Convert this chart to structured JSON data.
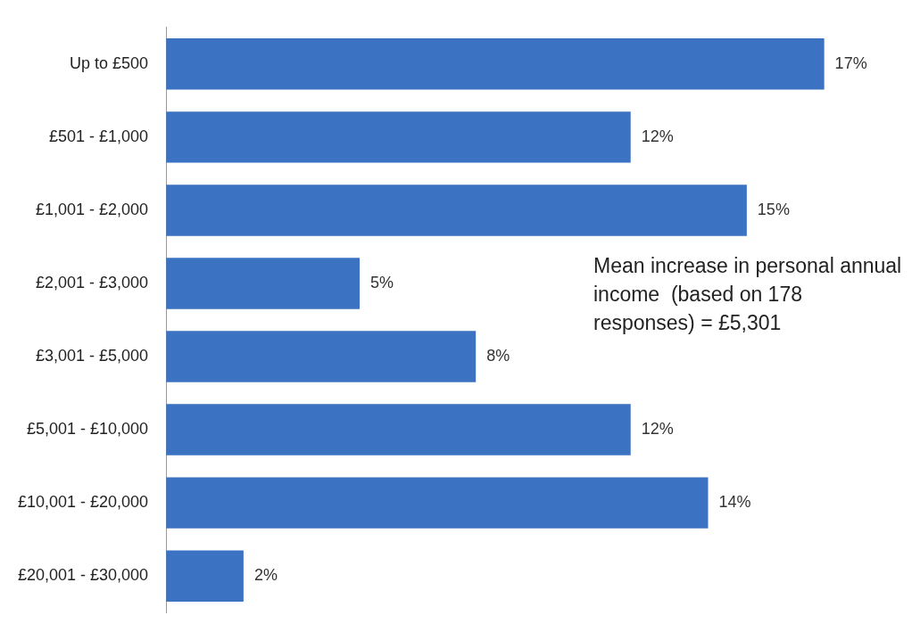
{
  "chart_data": {
    "type": "bar",
    "orientation": "horizontal",
    "categories": [
      "Up to £500",
      "£501 - £1,000",
      "£1,001 - £2,000",
      "£2,001 - £3,000",
      "£3,001 - £5,000",
      "£5,001 - £10,000",
      "£10,001 - £20,000",
      "£20,001 - £30,000"
    ],
    "values": [
      17,
      12,
      15,
      5,
      8,
      12,
      14,
      2
    ],
    "value_labels": [
      "17%",
      "12%",
      "15%",
      "5%",
      "8%",
      "12%",
      "14%",
      "2%"
    ],
    "color": "#3b72c2",
    "annotations": [
      "Mean increase in personal annual income  (based on 178 responses) = £5,301"
    ]
  }
}
